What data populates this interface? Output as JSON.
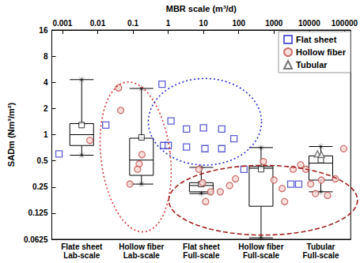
{
  "chart_data": {
    "type": "boxplot",
    "x_label": "MBR scale (m³/d)",
    "y_label": "SADm (Nm³/m²)",
    "categories": [
      "Flate sheet\nLab-scale",
      "Hollow fiber\nLab-scale",
      "Flat sheet\nFull-scale",
      "Hollow fiber\nFull-scale",
      "Tubular\nFull-scale"
    ],
    "boxes": [
      [
        0.58,
        0.75,
        1.0,
        1.34,
        4.3
      ],
      [
        0.27,
        0.34,
        0.51,
        0.91,
        3.4
      ],
      [
        0.21,
        0.22,
        0.26,
        0.28,
        0.42
      ],
      [
        0.065,
        0.15,
        0.41,
        0.43,
        0.71
      ],
      [
        0.22,
        0.3,
        0.47,
        0.57,
        0.73
      ]
    ],
    "means": [
      1.29,
      0.93,
      0.27,
      0.4,
      0.51
    ],
    "color": "#000000",
    "log": true,
    "grid": false,
    "legend": "upper right",
    "xlim": [
      0.0005,
      150000
    ],
    "xticks": [
      0.001,
      0.01,
      0.1,
      1,
      10,
      100,
      1000,
      10000,
      100000
    ],
    "ylim": [
      0.0625,
      16
    ],
    "yticks": [
      0.0625,
      0.125,
      0.25,
      0.5,
      1,
      2,
      4,
      8,
      16
    ],
    "series": [
      {
        "name": "Flat sheet",
        "color": "#3535c8",
        "marker": "square",
        "x": [
          0.0008,
          0.017,
          0.67,
          1.2,
          0.74,
          1.0,
          3.3,
          3.3,
          11,
          10,
          33,
          33,
          73,
          140,
          3000,
          5000
        ],
        "values": [
          0.6,
          1.29,
          3.8,
          1.44,
          0.75,
          0.75,
          0.72,
          1.16,
          0.69,
          1.2,
          1.16,
          0.69,
          0.9,
          0.4,
          0.27,
          0.27
        ]
      },
      {
        "name": "Hollow fiber",
        "color": "#c0504d",
        "marker": "circle",
        "x": [
          0.006,
          0.039,
          0.045,
          0.15,
          0.18,
          0.082,
          0.135,
          7.4,
          9.5,
          11.5,
          16,
          30,
          55,
          81,
          500,
          1000,
          1700,
          2000,
          5700,
          11000,
          15000,
          22000,
          33000,
          55000,
          95000,
          8000,
          3500
        ],
        "values": [
          0.86,
          3.46,
          1.9,
          0.46,
          0.59,
          0.27,
          0.4,
          0.4,
          0.28,
          0.17,
          0.22,
          0.22,
          0.26,
          0.31,
          0.49,
          0.3,
          0.24,
          0.17,
          0.45,
          0.27,
          0.21,
          0.3,
          0.2,
          0.31,
          0.69,
          0.4,
          0.4
        ]
      },
      {
        "name": "Tubular",
        "color": "#555555",
        "marker": "triangle",
        "x": [
          17000,
          22000
        ],
        "values": [
          0.6,
          0.59
        ]
      }
    ]
  }
}
